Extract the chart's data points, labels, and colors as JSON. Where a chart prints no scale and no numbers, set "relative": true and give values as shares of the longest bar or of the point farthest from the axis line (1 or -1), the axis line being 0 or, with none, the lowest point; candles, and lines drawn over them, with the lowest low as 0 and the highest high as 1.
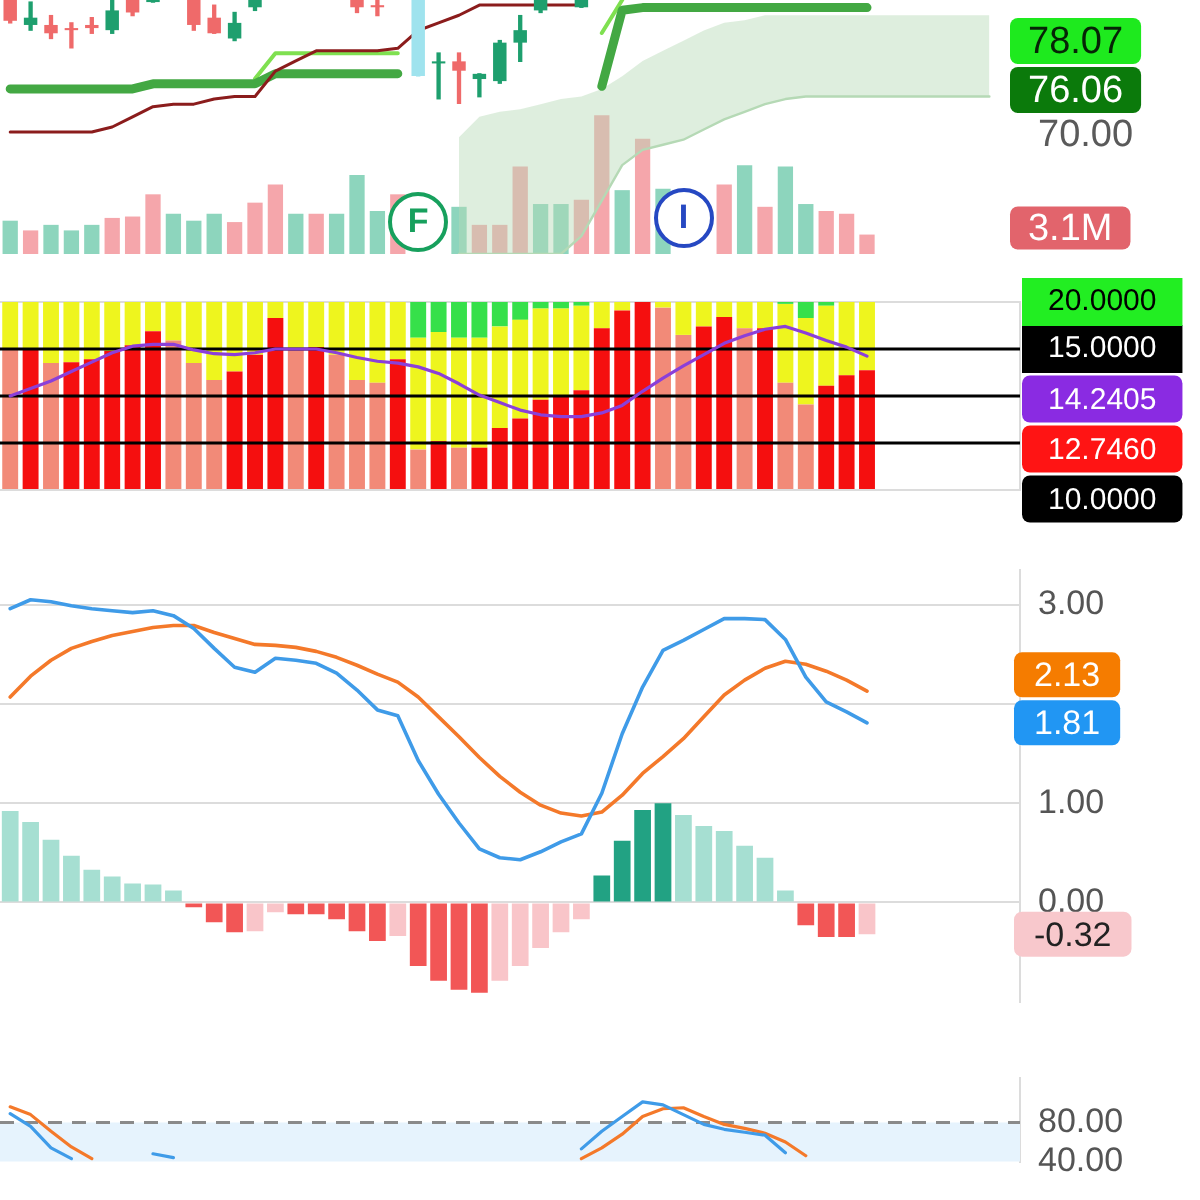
{
  "chart_data": [
    {
      "type": "candlestick",
      "relative": true,
      "categories": [
        null,
        null,
        null,
        null,
        null,
        null,
        null,
        null,
        null,
        null,
        null,
        null,
        null,
        null,
        null,
        null,
        null,
        null,
        null,
        null,
        null,
        null,
        null,
        null,
        null,
        null,
        null,
        null,
        null,
        null,
        null,
        null,
        null,
        null,
        null,
        null,
        null,
        null,
        null,
        null,
        null,
        null,
        null,
        null,
        null,
        null,
        null,
        null,
        null,
        null
      ],
      "ohlc": [
        [
          1,
          1,
          0.78,
          0.8
        ],
        [
          0.76,
          0.98,
          0.71,
          0.83
        ],
        [
          0.76,
          0.85,
          0.63,
          0.68
        ],
        [
          0.73,
          0.78,
          0.54,
          0.71
        ],
        [
          0.76,
          0.83,
          0.68,
          0.73
        ],
        [
          0.71,
          1,
          0.68,
          0.9
        ],
        [
          1,
          1,
          0.85,
          0.88
        ],
        [
          0.98,
          1,
          0.98,
          1
        ],
        null,
        [
          1,
          1,
          0.71,
          0.76
        ],
        [
          0.83,
          0.95,
          0.68,
          0.68
        ],
        [
          0.63,
          0.88,
          0.61,
          0.78
        ],
        [
          0.93,
          1,
          0.9,
          1
        ],
        null,
        null,
        null,
        null,
        [
          1,
          1,
          0.88,
          0.93
        ],
        [
          0.95,
          1,
          0.85,
          0.93
        ],
        null,
        [
          1,
          1,
          0.27,
          0.27
        ],
        [
          0.39,
          0.49,
          0.05,
          0.41
        ],
        [
          0.41,
          0.49,
          0,
          0.32
        ],
        [
          0.24,
          0.29,
          0.07,
          0.29
        ],
        [
          0.22,
          0.61,
          0.2,
          0.59
        ],
        [
          0.59,
          0.85,
          0.41,
          0.71
        ],
        [
          0.9,
          1,
          0.88,
          1
        ],
        null,
        [
          0.93,
          1,
          0.93,
          1
        ],
        null,
        null,
        null,
        null,
        null,
        null,
        null,
        null,
        null,
        null,
        null,
        null,
        null,
        null,
        null,
        null,
        null,
        null,
        null,
        null,
        null
      ],
      "colors": [
        "#ef6a6a",
        "#1e9f6e",
        "#ef6a6a",
        "#ef6a6a",
        "#ef6a6a",
        "#1e9f6e",
        "#ef6a6a",
        "#1e9f6e",
        null,
        "#ef6a6a",
        "#ef6a6a",
        "#1e9f6e",
        "#1e9f6e",
        null,
        null,
        null,
        null,
        "#ef6a6a",
        "#ef6a6a",
        null,
        "#9fe3ee",
        "#1e9f6e",
        "#ef6a6a",
        "#1e9f6e",
        "#1e9f6e",
        "#1e9f6e",
        "#1e9f6e",
        null,
        "#1e9f6e",
        null,
        null,
        null,
        null,
        null,
        null,
        null,
        null,
        null,
        null,
        null,
        null,
        null,
        null,
        null,
        null,
        null,
        null,
        null,
        null,
        null
      ]
    },
    {
      "type": "line",
      "relative": true,
      "marker": "none",
      "categories": [
        null,
        null,
        null,
        null,
        null,
        null,
        null,
        null,
        null,
        null,
        null,
        null,
        null,
        null,
        null,
        null,
        null,
        null,
        null,
        null,
        null,
        null,
        null,
        null,
        null,
        null,
        null,
        null,
        null,
        null,
        null,
        null,
        null,
        null,
        null,
        null,
        null,
        null,
        null,
        null,
        null,
        null,
        null,
        null,
        null,
        null,
        null,
        null,
        null,
        null
      ],
      "series": [
        {
          "color": "#b5d9b5",
          "values": [
            null,
            null,
            null,
            null,
            null,
            null,
            null,
            null,
            null,
            null,
            null,
            null,
            null,
            null,
            null,
            null,
            null,
            null,
            null,
            null,
            null,
            null,
            0,
            0,
            0,
            0,
            0,
            0,
            0.07,
            0.21,
            0.35,
            0.41,
            0.43,
            0.45,
            0.49,
            0.53,
            0.56,
            0.59,
            0.61,
            0.62,
            0.62,
            0.62,
            0.62,
            0.62,
            0.62,
            0.62,
            0.62,
            0.62,
            0.62,
            null
          ],
          "upper": [
            null,
            null,
            null,
            null,
            null,
            null,
            null,
            null,
            null,
            null,
            null,
            null,
            null,
            null,
            null,
            null,
            null,
            null,
            null,
            null,
            null,
            null,
            0.46,
            0.54,
            0.56,
            0.57,
            0.59,
            0.61,
            0.62,
            0.65,
            0.7,
            0.76,
            0.8,
            0.84,
            0.88,
            0.91,
            0.92,
            0.94,
            0.94,
            0.94,
            0.94,
            0.94,
            0.94,
            0.94,
            0.94,
            0.94,
            0.94,
            0.94,
            0.94,
            null
          ],
          "lower": [
            null,
            null,
            null,
            null,
            null,
            null,
            null,
            null,
            null,
            null,
            null,
            null,
            null,
            null,
            null,
            null,
            null,
            null,
            null,
            null,
            null,
            null,
            0,
            0,
            0,
            0,
            0,
            0,
            0.07,
            0.21,
            0.35,
            0.41,
            0.43,
            0.45,
            0.49,
            0.53,
            0.56,
            0.59,
            0.61,
            0.62,
            0.62,
            0.62,
            0.62,
            0.62,
            0.62,
            0.62,
            0.62,
            0.62,
            0.62,
            null
          ]
        },
        {
          "color": "#8b1c1c",
          "values": [
            0.48,
            0.48,
            0.48,
            0.48,
            0.48,
            0.5,
            0.54,
            0.58,
            0.59,
            0.59,
            0.61,
            0.62,
            0.62,
            0.72,
            0.76,
            0.8,
            0.8,
            0.8,
            0.8,
            0.81,
            0.88,
            0.91,
            0.94,
            0.98,
            0.98,
            0.98,
            0.98,
            0.98,
            0.98,
            null,
            null,
            null,
            null,
            null,
            null,
            null,
            null,
            null,
            null,
            null,
            null,
            null,
            null,
            null,
            null,
            null,
            null,
            null,
            null,
            null
          ]
        },
        {
          "color": "#43a843",
          "values": [
            0.65,
            0.65,
            0.65,
            0.65,
            0.65,
            0.65,
            0.65,
            0.67,
            0.67,
            0.67,
            0.67,
            0.67,
            0.67,
            0.71,
            0.71,
            0.71,
            0.71,
            0.71,
            0.71,
            0.71,
            null,
            null,
            null,
            null,
            null,
            null,
            null,
            null,
            null,
            0.66,
            0.96,
            0.97,
            0.97,
            0.97,
            0.97,
            0.97,
            0.97,
            0.97,
            0.97,
            0.97,
            0.97,
            0.97,
            0.97,
            null,
            null,
            null,
            null,
            null,
            null,
            null
          ]
        },
        {
          "color": "#7fe050",
          "values": [
            null,
            null,
            null,
            null,
            null,
            null,
            null,
            null,
            null,
            null,
            null,
            null,
            0.69,
            0.79,
            0.79,
            0.79,
            0.79,
            0.79,
            0.79,
            0.79,
            null,
            null,
            null,
            null,
            null,
            null,
            null,
            null,
            null,
            0.87,
            1,
            null,
            null,
            null,
            null,
            null,
            null,
            null,
            null,
            null,
            null,
            null,
            null,
            null,
            null,
            null,
            null,
            null,
            null,
            null
          ]
        }
      ],
      "annotations": [
        "70.00",
        "78.07",
        "76.06"
      ]
    },
    {
      "type": "bar",
      "relative": true,
      "categories": [
        null,
        null,
        null,
        null,
        null,
        null,
        null,
        null,
        null,
        null,
        null,
        null,
        null,
        null,
        null,
        null,
        null,
        null,
        null,
        null,
        null,
        null,
        null,
        null,
        null,
        null,
        null,
        null,
        null,
        null,
        null,
        null,
        null,
        null,
        null,
        null,
        null,
        null,
        null,
        null,
        null,
        null,
        null,
        null,
        null,
        null,
        null,
        null,
        null,
        null
      ],
      "series": [
        {
          "values": [
            0.24,
            0.17,
            0.21,
            0.17,
            0.21,
            0.26,
            0.27,
            0.43,
            0.29,
            0.24,
            0.29,
            0.23,
            0.37,
            0.5,
            0.29,
            0.29,
            0.29,
            0.57,
            0.31,
            0.43,
            null,
            null,
            0.34,
            0.21,
            0.21,
            0.63,
            0.36,
            0.36,
            0.39,
            1,
            0.46,
            0.83,
            0.47,
            null,
            null,
            0.5,
            0.64,
            0.34,
            0.63,
            0.36,
            0.31,
            0.29,
            0.14,
            null,
            null,
            null,
            null,
            null,
            null,
            null
          ],
          "colors": [
            "#8dd5bd",
            "#f5a6ab",
            "#8dd5bd",
            "#8dd5bd",
            "#8dd5bd",
            "#f5a6ab",
            "#f5a6ab",
            "#f5a6ab",
            "#8dd5bd",
            "#8dd5bd",
            "#8dd5bd",
            "#f5a6ab",
            "#f5a6ab",
            "#f5a6ab",
            "#8dd5bd",
            "#f5a6ab",
            "#8dd5bd",
            "#8dd5bd",
            "#8dd5bd",
            "#f5a6ab",
            null,
            null,
            "#8dd5bd",
            "#f5a6ab",
            "#f5a6ab",
            "#f5a6ab",
            "#8dd5bd",
            "#8dd5bd",
            "#f5a6ab",
            "#f5a6ab",
            "#8dd5bd",
            "#f5a6ab",
            "#8dd5bd",
            null,
            null,
            "#f5a6ab",
            "#8dd5bd",
            "#f5a6ab",
            "#8dd5bd",
            "#8dd5bd",
            "#f5a6ab",
            "#f5a6ab",
            "#f5a6ab",
            null,
            null,
            null,
            null,
            null,
            null,
            null
          ]
        }
      ],
      "annotations": [
        "3.1M",
        "F",
        "I"
      ]
    },
    {
      "type": "bar",
      "stacked": true,
      "marker": "none",
      "grid": "y",
      "categories": [
        null,
        null,
        null,
        null,
        null,
        null,
        null,
        null,
        null,
        null,
        null,
        null,
        null,
        null,
        null,
        null,
        null,
        null,
        null,
        null,
        null,
        null,
        null,
        null,
        null,
        null,
        null,
        null,
        null,
        null,
        null,
        null,
        null,
        null,
        null,
        null,
        null,
        null,
        null,
        null,
        null,
        null,
        null,
        null,
        null,
        null,
        null,
        null,
        null,
        null
      ],
      "ylim": [
        0,
        20
      ],
      "yticks": [
        {
          "value": 0,
          "label": null
        },
        {
          "value": 10,
          "label": null
        },
        {
          "value": 15,
          "label": "15.0000"
        },
        {
          "value": 20,
          "label": "20.0000"
        }
      ],
      "series": [
        {
          "values": [
            15.0,
            15.0,
            13.5,
            13.6,
            13.9,
            14.8,
            15.4,
            16.9,
            15.9,
            13.5,
            11.7,
            12.6,
            14.4,
            18.3,
            15.0,
            15.2,
            14.4,
            11.7,
            11.4,
            13.9,
            4.3,
            5.2,
            4.5,
            4.5,
            6.6,
            7.6,
            9.6,
            10.0,
            10.6,
            17.2,
            19.1,
            20,
            19.4,
            16.5,
            17.4,
            18.4,
            17.2,
            17.2,
            11.4,
            9.1,
            11.1,
            12.2,
            12.746,
            null,
            null,
            null,
            null,
            null,
            null,
            null
          ],
          "colors": [
            "#f28a78",
            "#f50f0f",
            "#f28a78",
            "#f50f0f",
            "#f50f0f",
            "#f50f0f",
            "#f50f0f",
            "#f50f0f",
            "#f28a78",
            "#f28a78",
            "#f28a78",
            "#f50f0f",
            "#f50f0f",
            "#f50f0f",
            "#f28a78",
            "#f50f0f",
            "#f28a78",
            "#f28a78",
            "#f28a78",
            "#f50f0f",
            "#f28a78",
            "#f50f0f",
            "#f28a78",
            "#f50f0f",
            "#f50f0f",
            "#f50f0f",
            "#f50f0f",
            "#f50f0f",
            "#f50f0f",
            "#f50f0f",
            "#f50f0f",
            "#f50f0f",
            "#f28a78",
            "#f28a78",
            "#f50f0f",
            "#f50f0f",
            "#f28a78",
            "#f50f0f",
            "#f28a78",
            "#f28a78",
            "#f50f0f",
            "#f50f0f",
            "#f50f0f",
            null,
            null,
            null,
            null,
            null,
            null,
            null
          ]
        },
        {
          "color": "#eef51e",
          "values": [
            5,
            5,
            6.5,
            6.4,
            6.1,
            5.2,
            4.6,
            3.1,
            4.1,
            6.5,
            8.3,
            7.4,
            5.6,
            1.7,
            5,
            4.8,
            5.6,
            8.3,
            8.6,
            6.1,
            11.9,
            11.6,
            11.7,
            11.7,
            10.8,
            10.5,
            9.7,
            9.3,
            9,
            2.8,
            0.9,
            null,
            0.6,
            3.5,
            2.6,
            1.6,
            2.8,
            2.8,
            8.4,
            9.2,
            8.5,
            7.8,
            7.25,
            null,
            null,
            null,
            null,
            null,
            null,
            null
          ]
        },
        {
          "color": "#36e04a",
          "values": [
            null,
            null,
            null,
            null,
            null,
            null,
            null,
            null,
            null,
            null,
            null,
            null,
            null,
            null,
            null,
            null,
            null,
            null,
            null,
            null,
            3.8,
            3.2,
            3.8,
            3.8,
            2.6,
            1.9,
            0.7,
            0.7,
            0.4,
            null,
            null,
            null,
            null,
            null,
            null,
            null,
            null,
            null,
            0.2,
            1.7,
            0.4,
            null,
            null,
            null,
            null,
            null,
            null,
            null,
            null,
            null
          ]
        },
        {
          "type": "line",
          "color": "#8b3fd9",
          "values": [
            10.0,
            10.8,
            11.6,
            12.6,
            13.6,
            14.6,
            15.3,
            15.5,
            15.5,
            14.9,
            14.5,
            14.4,
            14.6,
            15.0,
            15.0,
            15.0,
            14.6,
            14.1,
            13.7,
            13.5,
            13.1,
            12.4,
            11.3,
            10.1,
            9.3,
            8.5,
            8.0,
            7.8,
            7.8,
            8.2,
            9.0,
            10.5,
            11.9,
            13.2,
            14.4,
            15.6,
            16.4,
            17.1,
            17.4,
            16.7,
            15.9,
            15.2,
            14.2405,
            null,
            null,
            null,
            null,
            null,
            null,
            null
          ]
        }
      ],
      "ref_lines": [
        {
          "axis": "y",
          "value": 15,
          "color": "#000000"
        },
        {
          "axis": "y",
          "value": 10,
          "color": "#000000"
        },
        {
          "axis": "y",
          "value": 5,
          "color": "#000000"
        }
      ],
      "annotations": [
        "14.2405",
        "12.7460",
        "10.0000"
      ]
    },
    {
      "type": "line",
      "marker": "none",
      "grid": "y",
      "categories": [
        null,
        null,
        null,
        null,
        null,
        null,
        null,
        null,
        null,
        null,
        null,
        null,
        null,
        null,
        null,
        null,
        null,
        null,
        null,
        null,
        null,
        null,
        null,
        null,
        null,
        null,
        null,
        null,
        null,
        null,
        null,
        null,
        null,
        null,
        null,
        null,
        null,
        null,
        null,
        null,
        null,
        null,
        null,
        null,
        null,
        null,
        null,
        null,
        null,
        null
      ],
      "ylim": [
        -1,
        3.35
      ],
      "yticks": [
        {
          "value": 3,
          "label": "3.00"
        },
        {
          "value": 2,
          "label": null
        },
        {
          "value": 1,
          "label": "1.00"
        },
        {
          "value": 0,
          "label": "0.00"
        }
      ],
      "series": [
        {
          "type": "bar",
          "values": [
            0.92,
            0.81,
            0.63,
            0.47,
            0.33,
            0.26,
            0.19,
            0.18,
            0.12,
            -0.05,
            -0.2,
            -0.3,
            -0.29,
            -0.1,
            -0.12,
            -0.12,
            -0.17,
            -0.29,
            -0.39,
            -0.34,
            -0.64,
            -0.79,
            -0.88,
            -0.91,
            -0.79,
            -0.64,
            -0.46,
            -0.3,
            -0.17,
            0.27,
            0.62,
            0.93,
            1.0,
            0.88,
            0.77,
            0.72,
            0.57,
            0.45,
            0.12,
            -0.23,
            -0.35,
            -0.35,
            -0.32,
            null,
            null,
            null,
            null,
            null,
            null,
            null
          ],
          "colors": [
            "#a6dfd2",
            "#a6dfd2",
            "#a6dfd2",
            "#a6dfd2",
            "#a6dfd2",
            "#a6dfd2",
            "#a6dfd2",
            "#a6dfd2",
            "#a6dfd2",
            "#f25656",
            "#f25656",
            "#f25656",
            "#f9c5c9",
            "#f9c5c9",
            "#f25656",
            "#f25656",
            "#f25656",
            "#f25656",
            "#f25656",
            "#f9c5c9",
            "#f25656",
            "#f25656",
            "#f25656",
            "#f25656",
            "#f9c5c9",
            "#f9c5c9",
            "#f9c5c9",
            "#f9c5c9",
            "#f9c5c9",
            "#22a283",
            "#22a283",
            "#22a283",
            "#22a283",
            "#a6dfd2",
            "#a6dfd2",
            "#a6dfd2",
            "#a6dfd2",
            "#a6dfd2",
            "#a6dfd2",
            "#f25656",
            "#f25656",
            "#f25656",
            "#f9c5c9",
            null,
            null,
            null,
            null,
            null,
            null,
            null
          ]
        },
        {
          "color": "#3f9be8",
          "values": [
            2.96,
            3.05,
            3.03,
            2.99,
            2.96,
            2.94,
            2.92,
            2.94,
            2.89,
            2.76,
            2.56,
            2.37,
            2.32,
            2.46,
            2.44,
            2.41,
            2.31,
            2.14,
            1.94,
            1.88,
            1.43,
            1.09,
            0.8,
            0.54,
            0.45,
            0.43,
            0.51,
            0.61,
            0.69,
            1.1,
            1.7,
            2.17,
            2.54,
            2.64,
            2.75,
            2.86,
            2.86,
            2.85,
            2.65,
            2.27,
            2.02,
            1.92,
            1.81,
            null,
            null,
            null,
            null,
            null,
            null,
            null
          ]
        },
        {
          "color": "#f4792a",
          "values": [
            2.07,
            2.28,
            2.44,
            2.56,
            2.63,
            2.69,
            2.73,
            2.77,
            2.79,
            2.79,
            2.72,
            2.66,
            2.6,
            2.59,
            2.57,
            2.53,
            2.47,
            2.39,
            2.3,
            2.22,
            2.07,
            1.87,
            1.67,
            1.46,
            1.27,
            1.11,
            0.98,
            0.9,
            0.87,
            0.91,
            1.08,
            1.3,
            1.47,
            1.65,
            1.87,
            2.09,
            2.24,
            2.36,
            2.43,
            2.4,
            2.33,
            2.24,
            2.13,
            null,
            null,
            null,
            null,
            null,
            null,
            null
          ]
        }
      ],
      "annotations": [
        "1.81",
        "2.13",
        "-0.32"
      ]
    },
    {
      "type": "line",
      "marker": "none",
      "categories": [
        null,
        null,
        null,
        null,
        null,
        null,
        null,
        null,
        null,
        null,
        null,
        null,
        null,
        null,
        null,
        null,
        null,
        null,
        null,
        null,
        null,
        null,
        null,
        null,
        null,
        null,
        null,
        null,
        null,
        null,
        null,
        null,
        null,
        null,
        null,
        null,
        null,
        null,
        null,
        null,
        null,
        null,
        null,
        null,
        null,
        null,
        null,
        null,
        null,
        null
      ],
      "ylim": [
        40,
        125
      ],
      "yticks": [
        {
          "value": 40,
          "label": "40.00"
        },
        {
          "value": 80,
          "label": "80.00"
        }
      ],
      "series": [
        {
          "color": "#3f9be8",
          "values": [
            89,
            76,
            54,
            43,
            null,
            null,
            null,
            48,
            44,
            null,
            null,
            null,
            null,
            null,
            null,
            null,
            null,
            null,
            null,
            null,
            null,
            null,
            null,
            null,
            null,
            null,
            null,
            null,
            53,
            71,
            86,
            101,
            98,
            88,
            78,
            73,
            70,
            67,
            49,
            null,
            null,
            null,
            null,
            null,
            null,
            null,
            null,
            null,
            null,
            null
          ]
        },
        {
          "color": "#f4792a",
          "values": [
            96,
            88,
            71,
            55,
            43,
            null,
            null,
            null,
            null,
            null,
            null,
            null,
            null,
            null,
            null,
            null,
            null,
            null,
            null,
            null,
            null,
            null,
            null,
            null,
            null,
            null,
            null,
            null,
            43,
            54,
            68,
            86,
            94,
            95,
            86,
            78,
            74,
            69,
            60,
            46,
            null,
            null,
            null,
            null,
            null,
            null,
            null,
            null,
            null,
            null
          ]
        }
      ],
      "ref_lines": [
        {
          "axis": "y",
          "value": 80,
          "color": "#8a8a8a",
          "line_style": "dashed"
        }
      ],
      "bands": [
        {
          "axis": "y",
          "from": 40,
          "to": 80,
          "color": "#e6f3fd"
        }
      ]
    }
  ]
}
